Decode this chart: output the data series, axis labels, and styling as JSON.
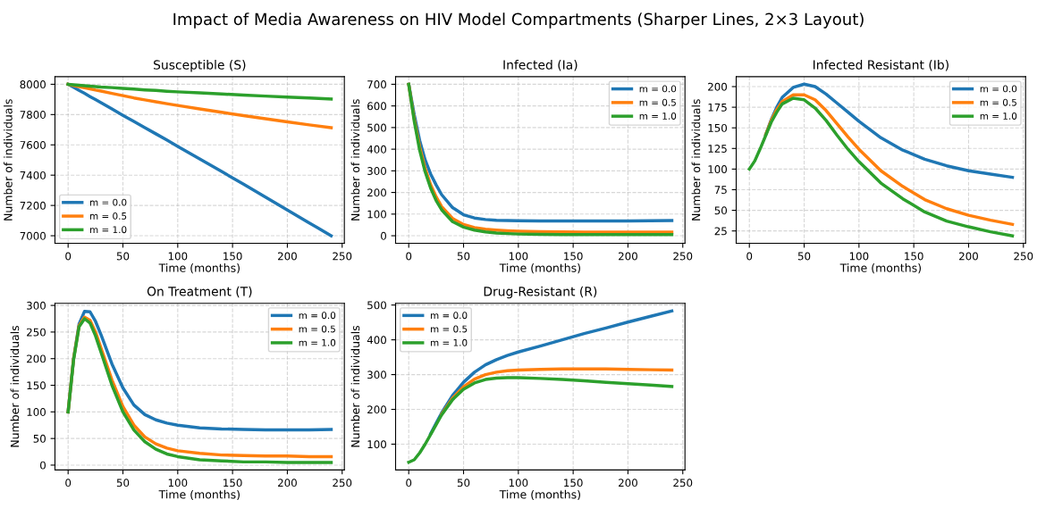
{
  "chart_data": [
    {
      "type": "line",
      "title": "Susceptible (S)",
      "xlabel": "Time (months)",
      "ylabel": "Number of individuals",
      "annotations": [
        "Impact of Media Awareness on HIV Model Compartments (Sharper Lines, 2×3 Layout)"
      ],
      "x": [
        0,
        5,
        10,
        15,
        20,
        25,
        30,
        40,
        50,
        60,
        70,
        80,
        90,
        100,
        120,
        140,
        160,
        180,
        200,
        220,
        240
      ],
      "series": [
        {
          "name": "m = 0.0",
          "color": "#1f77b4",
          "values": [
            8000,
            7980,
            7960,
            7940,
            7919,
            7899,
            7878,
            7837,
            7795,
            7755,
            7714,
            7673,
            7632,
            7590,
            7507,
            7424,
            7340,
            7255,
            7170,
            7085,
            7000
          ]
        },
        {
          "name": "m = 0.5",
          "color": "#ff7f0e",
          "values": [
            8000,
            7992,
            7985,
            7977,
            7970,
            7962,
            7955,
            7940,
            7925,
            7910,
            7897,
            7884,
            7872,
            7860,
            7837,
            7815,
            7793,
            7772,
            7752,
            7732,
            7713
          ]
        },
        {
          "name": "m = 1.0",
          "color": "#2ca02c",
          "values": [
            8000,
            7997,
            7994,
            7991,
            7988,
            7985,
            7982,
            7978,
            7973,
            7968,
            7963,
            7959,
            7954,
            7950,
            7943,
            7936,
            7929,
            7922,
            7915,
            7909,
            7903
          ]
        }
      ],
      "xlim": [
        -12,
        252
      ],
      "xticks": [
        0,
        50,
        100,
        150,
        200,
        250
      ],
      "ylim": [
        6950,
        8050
      ],
      "yticks": [
        7000,
        7200,
        7400,
        7600,
        7800,
        8000
      ],
      "grid": true,
      "legend": "bottom left",
      "line_style": "solid"
    },
    {
      "type": "line",
      "title": "Infected (Ia)",
      "xlabel": "Time (months)",
      "ylabel": "Number of individuals",
      "x": [
        0,
        5,
        10,
        15,
        20,
        25,
        30,
        40,
        50,
        60,
        70,
        80,
        90,
        100,
        120,
        140,
        160,
        180,
        200,
        220,
        240
      ],
      "series": [
        {
          "name": "m = 0.0",
          "color": "#1f77b4",
          "values": [
            700,
            560,
            440,
            350,
            285,
            235,
            190,
            130,
            97,
            82,
            75,
            71,
            70,
            69,
            68,
            68,
            68,
            68,
            68,
            69,
            70
          ]
        },
        {
          "name": "m = 0.5",
          "color": "#ff7f0e",
          "values": [
            700,
            540,
            410,
            310,
            235,
            180,
            135,
            80,
            52,
            38,
            30,
            26,
            23,
            21,
            19,
            18,
            17,
            17,
            17,
            17,
            17
          ]
        },
        {
          "name": "m = 1.0",
          "color": "#2ca02c",
          "values": [
            700,
            530,
            395,
            295,
            220,
            163,
            120,
            65,
            40,
            26,
            18,
            13,
            10,
            8,
            6,
            5,
            5,
            5,
            5,
            5,
            5
          ]
        }
      ],
      "xlim": [
        -12,
        252
      ],
      "xticks": [
        0,
        50,
        100,
        150,
        200,
        250
      ],
      "ylim": [
        -35,
        735
      ],
      "yticks": [
        0,
        100,
        200,
        300,
        400,
        500,
        600,
        700
      ],
      "grid": true,
      "legend": "top right",
      "line_style": "solid"
    },
    {
      "type": "line",
      "title": "Infected Resistant (Ib)",
      "xlabel": "Time (months)",
      "ylabel": "Number of individuals",
      "x": [
        0,
        5,
        10,
        15,
        20,
        25,
        30,
        40,
        50,
        60,
        70,
        80,
        90,
        100,
        120,
        140,
        160,
        180,
        200,
        220,
        240
      ],
      "series": [
        {
          "name": "m = 0.0",
          "color": "#1f77b4",
          "values": [
            null,
            null,
            null,
            142,
            160,
            175,
            187,
            199,
            203,
            200,
            191,
            180,
            169,
            158,
            138,
            123,
            112,
            104,
            98,
            94,
            90
          ]
        },
        {
          "name": "m = 0.5",
          "color": "#ff7f0e",
          "values": [
            null,
            null,
            null,
            142,
            159,
            172,
            182,
            190,
            190,
            184,
            171,
            155,
            139,
            124,
            98,
            79,
            63,
            52,
            44,
            38,
            33
          ]
        },
        {
          "name": "m = 1.0",
          "color": "#2ca02c",
          "values": [
            100,
            110,
            125,
            141,
            157,
            169,
            179,
            186,
            184,
            174,
            159,
            141,
            124,
            109,
            83,
            64,
            48,
            37,
            30,
            24,
            19
          ]
        }
      ],
      "xlim": [
        -12,
        252
      ],
      "xticks": [
        0,
        50,
        100,
        150,
        200,
        250
      ],
      "ylim": [
        10,
        212
      ],
      "yticks": [
        25,
        50,
        75,
        100,
        125,
        150,
        175,
        200
      ],
      "grid": true,
      "legend": "top right",
      "line_style": "solid"
    },
    {
      "type": "line",
      "title": "On Treatment (T)",
      "xlabel": "Time (months)",
      "ylabel": "Number of individuals",
      "x": [
        0,
        5,
        10,
        15,
        20,
        25,
        30,
        40,
        50,
        60,
        70,
        80,
        90,
        100,
        120,
        140,
        160,
        180,
        200,
        220,
        240
      ],
      "series": [
        {
          "name": "m = 0.0",
          "color": "#1f77b4",
          "values": [
            100,
            200,
            265,
            289,
            288,
            270,
            245,
            190,
            145,
            113,
            95,
            85,
            79,
            75,
            70,
            68,
            67,
            66,
            66,
            66,
            67
          ]
        },
        {
          "name": "m = 0.5",
          "color": "#ff7f0e",
          "values": [
            100,
            200,
            262,
            278,
            272,
            250,
            220,
            160,
            110,
            75,
            53,
            40,
            32,
            27,
            22,
            19,
            18,
            17,
            17,
            16,
            16
          ]
        },
        {
          "name": "m = 1.0",
          "color": "#2ca02c",
          "values": [
            100,
            198,
            260,
            275,
            267,
            243,
            212,
            150,
            100,
            66,
            44,
            30,
            21,
            16,
            10,
            8,
            6,
            6,
            5,
            5,
            5
          ]
        }
      ],
      "xlim": [
        -12,
        252
      ],
      "xticks": [
        0,
        50,
        100,
        150,
        200,
        250
      ],
      "ylim": [
        -9,
        304
      ],
      "yticks": [
        0,
        50,
        100,
        150,
        200,
        250,
        300
      ],
      "grid": true,
      "legend": "top right",
      "line_style": "solid"
    },
    {
      "type": "line",
      "title": "Drug-Resistant (R)",
      "xlabel": "Time (months)",
      "ylabel": "Number of individuals",
      "x": [
        0,
        5,
        10,
        15,
        20,
        25,
        30,
        40,
        50,
        60,
        70,
        80,
        90,
        100,
        120,
        140,
        160,
        180,
        200,
        220,
        240
      ],
      "series": [
        {
          "name": "m = 0.0",
          "color": "#1f77b4",
          "values": [
            null,
            null,
            null,
            null,
            130,
            160,
            190,
            240,
            278,
            307,
            328,
            343,
            355,
            365,
            382,
            400,
            418,
            434,
            451,
            467,
            483
          ]
        },
        {
          "name": "m = 0.5",
          "color": "#ff7f0e",
          "values": [
            null,
            null,
            null,
            null,
            null,
            null,
            186,
            232,
            265,
            287,
            300,
            307,
            311,
            313,
            315,
            316,
            316,
            316,
            315,
            314,
            313
          ]
        },
        {
          "name": "m = 1.0",
          "color": "#2ca02c",
          "values": [
            48,
            55,
            75,
            100,
            128,
            156,
            184,
            228,
            258,
            276,
            286,
            290,
            291,
            291,
            289,
            286,
            282,
            278,
            274,
            270,
            266
          ]
        }
      ],
      "xlim": [
        -12,
        252
      ],
      "xticks": [
        0,
        50,
        100,
        150,
        200,
        250
      ],
      "ylim": [
        26,
        505
      ],
      "yticks": [
        100,
        200,
        300,
        400,
        500
      ],
      "grid": true,
      "legend": "top left",
      "line_style": "solid"
    }
  ]
}
